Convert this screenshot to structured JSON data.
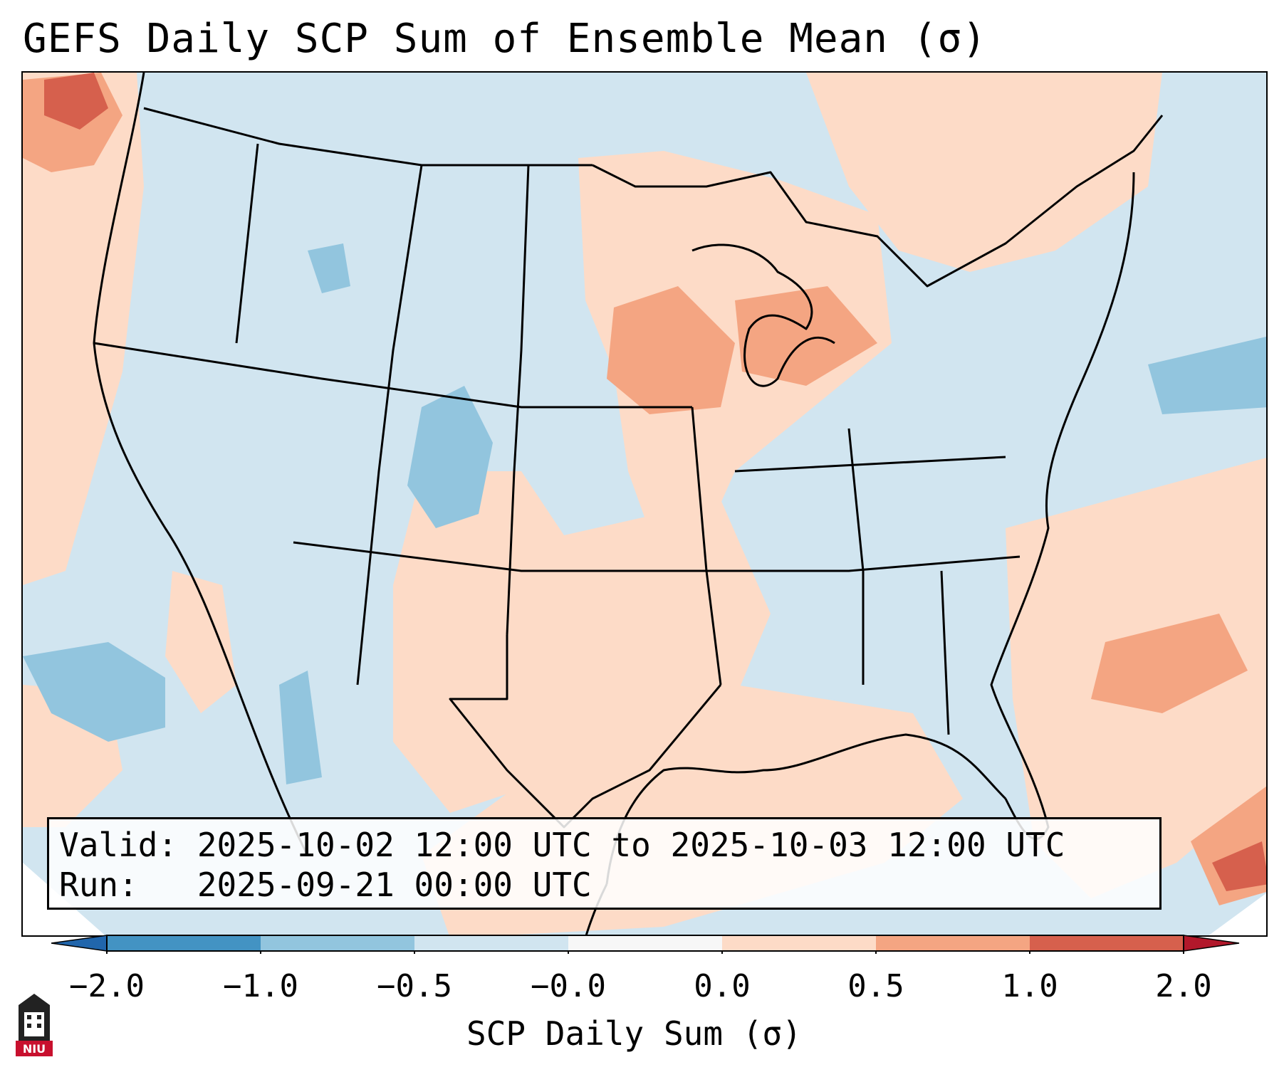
{
  "title": "GEFS Daily SCP Sum of Ensemble Mean (σ)",
  "info": {
    "valid_line": "Valid: 2025-10-02 12:00 UTC to 2025-10-03 12:00 UTC",
    "run_line": "Run:   2025-09-21 00:00 UTC"
  },
  "colorbar": {
    "label": "SCP Daily Sum (σ)",
    "ticks": [
      "−2.0",
      "−1.0",
      "−0.5",
      "−0.0",
      "0.0",
      "0.5",
      "1.0",
      "2.0"
    ],
    "colors": [
      "#4393c3",
      "#92c5de",
      "#d1e5f0",
      "#f7f7f7",
      "#fddbc7",
      "#f4a582",
      "#d6604d"
    ],
    "extend_min_color": "#2166ac",
    "extend_max_color": "#b2182b"
  },
  "logo": {
    "text": "NIU",
    "icon": "niu-logo-icon"
  },
  "map_colors": {
    "ocean_land_base": "#d1e5f0",
    "light_red": "#fddbc7",
    "mid_red": "#f4a582",
    "dark_red": "#d6604d",
    "mid_blue": "#92c5de",
    "border": "#000000"
  }
}
